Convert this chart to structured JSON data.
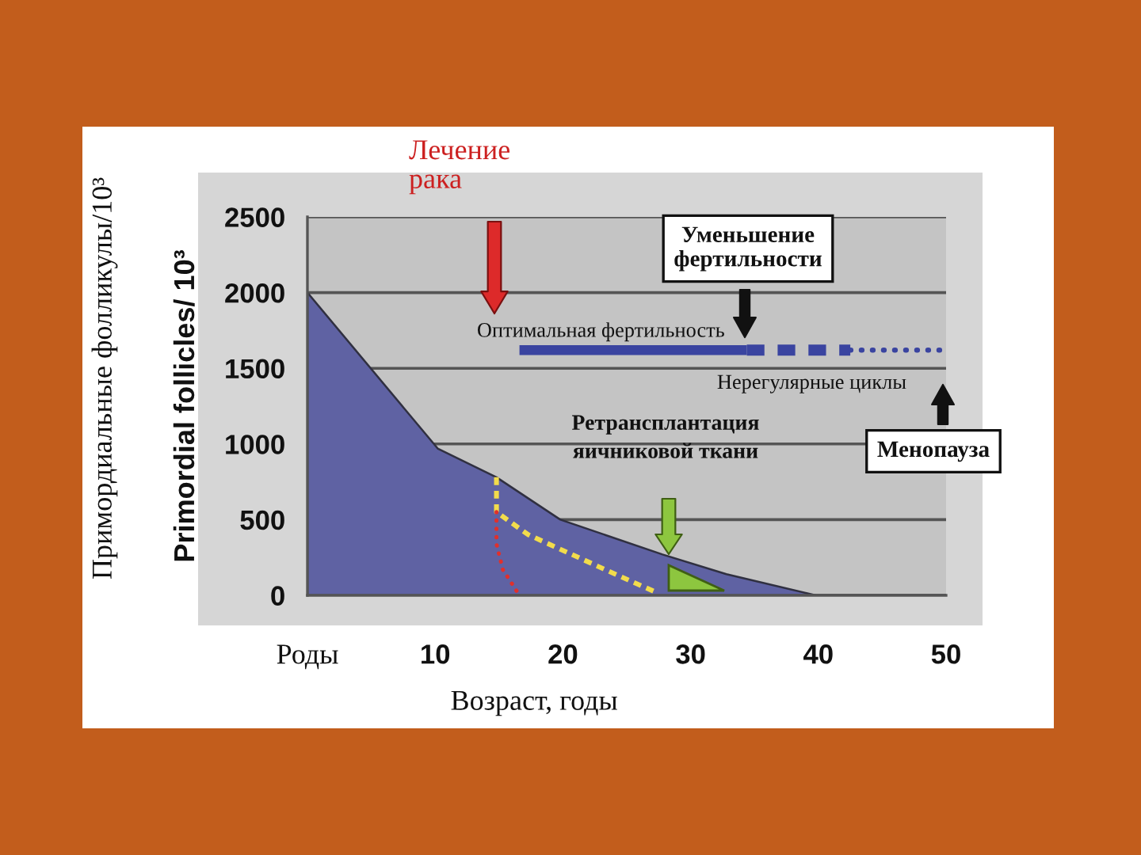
{
  "chart_data": {
    "type": "area",
    "xlabel": "Возраст, годы",
    "ylabel": "Primordial follicles/ 10³",
    "xlim": [
      0,
      50
    ],
    "xticks": [
      {
        "value": 0,
        "label": "Роды"
      },
      10,
      20,
      30,
      40,
      50
    ],
    "ylim": [
      0,
      2500
    ],
    "yticks": [
      0,
      500,
      1000,
      1500,
      2000,
      2500
    ],
    "grid": "y",
    "series": [
      {
        "color": "#5f62a3",
        "x": [
          0,
          10.2,
          14.8,
          19.8,
          27.8,
          32.8,
          39.8,
          50
        ],
        "values": [
          2000,
          970,
          780,
          500,
          270,
          140,
          0,
          0
        ]
      },
      {
        "type": "line",
        "color": "#f2dc4c",
        "line_style": "dashed",
        "x": [
          14.8,
          14.8,
          17.3,
          20.7,
          24.1,
          27.3
        ],
        "values": [
          780,
          550,
          400,
          270,
          140,
          20
        ]
      },
      {
        "type": "line",
        "color": "#e0302c",
        "line_style": "dotted",
        "x": [
          14.8,
          14.8,
          15.3,
          16.6
        ],
        "values": [
          550,
          340,
          170,
          0
        ]
      },
      {
        "type": "line",
        "name": "Оптимальная фертильность",
        "color": "#3a44a0",
        "line_style": "solid",
        "x": [
          16.6,
          34.4
        ],
        "values": [
          1620,
          1620
        ]
      },
      {
        "type": "line",
        "name": "Нерегулярные циклы",
        "color": "#3a44a0",
        "line_style": "dashed",
        "x": [
          34.4,
          42.5
        ],
        "values": [
          1620,
          1620
        ]
      },
      {
        "type": "line",
        "color": "#3a44a0",
        "line_style": "dotted",
        "x": [
          42.5,
          50
        ],
        "values": [
          1620,
          1620
        ]
      }
    ],
    "annotations": [
      "Примордиальные фолликулы/10³",
      "Лечение\nрака",
      "Уменьшение\nфертильности",
      "Ретрансплантация\nяичниковой ткани",
      "Менопауза"
    ]
  }
}
